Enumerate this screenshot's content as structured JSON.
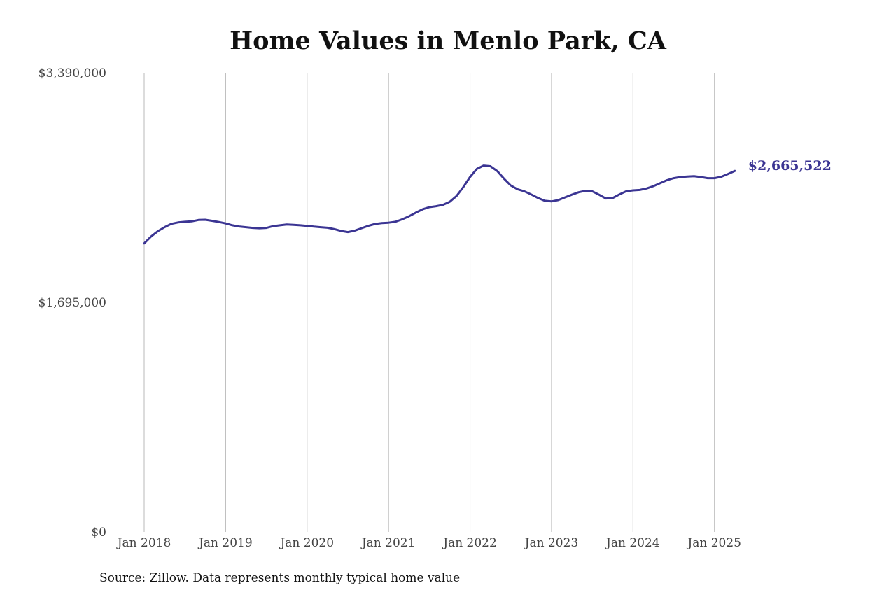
{
  "chart_data": {
    "type": "line",
    "title": "Home Values in Menlo Park, CA",
    "source": "Source: Zillow. Data represents monthly typical home value",
    "x_ticks": [
      "Jan 2018",
      "Jan 2019",
      "Jan 2020",
      "Jan 2021",
      "Jan 2022",
      "Jan 2023",
      "Jan 2024",
      "Jan 2025"
    ],
    "y_ticks": [
      {
        "value": 0,
        "label": "$0"
      },
      {
        "value": 1695000,
        "label": "$1,695,000"
      },
      {
        "value": 3390000,
        "label": "$3,390,000"
      }
    ],
    "ylim": [
      0,
      3390000
    ],
    "x_range": [
      "2018-01",
      "2025-10"
    ],
    "grid": {
      "vertical": true,
      "horizontal": false
    },
    "series": [
      {
        "color": "#3b3593",
        "end_label": "$2,665,522",
        "points": [
          [
            "2018-01",
            2130000
          ],
          [
            "2018-02",
            2180000
          ],
          [
            "2018-03",
            2220000
          ],
          [
            "2018-04",
            2250000
          ],
          [
            "2018-05",
            2275000
          ],
          [
            "2018-06",
            2285000
          ],
          [
            "2018-07",
            2290000
          ],
          [
            "2018-08",
            2293000
          ],
          [
            "2018-09",
            2303000
          ],
          [
            "2018-10",
            2305000
          ],
          [
            "2018-11",
            2297000
          ],
          [
            "2018-12",
            2288000
          ],
          [
            "2019-01",
            2278000
          ],
          [
            "2019-02",
            2264000
          ],
          [
            "2019-03",
            2255000
          ],
          [
            "2019-04",
            2250000
          ],
          [
            "2019-05",
            2245000
          ],
          [
            "2019-06",
            2242000
          ],
          [
            "2019-07",
            2245000
          ],
          [
            "2019-08",
            2258000
          ],
          [
            "2019-09",
            2264000
          ],
          [
            "2019-10",
            2270000
          ],
          [
            "2019-11",
            2267000
          ],
          [
            "2019-12",
            2264000
          ],
          [
            "2020-01",
            2260000
          ],
          [
            "2020-02",
            2254000
          ],
          [
            "2020-03",
            2250000
          ],
          [
            "2020-04",
            2246000
          ],
          [
            "2020-05",
            2236000
          ],
          [
            "2020-06",
            2222000
          ],
          [
            "2020-07",
            2214000
          ],
          [
            "2020-08",
            2224000
          ],
          [
            "2020-09",
            2242000
          ],
          [
            "2020-10",
            2260000
          ],
          [
            "2020-11",
            2274000
          ],
          [
            "2020-12",
            2280000
          ],
          [
            "2021-01",
            2283000
          ],
          [
            "2021-02",
            2290000
          ],
          [
            "2021-03",
            2308000
          ],
          [
            "2021-04",
            2330000
          ],
          [
            "2021-05",
            2357000
          ],
          [
            "2021-06",
            2382000
          ],
          [
            "2021-07",
            2398000
          ],
          [
            "2021-08",
            2405000
          ],
          [
            "2021-09",
            2415000
          ],
          [
            "2021-10",
            2437000
          ],
          [
            "2021-11",
            2480000
          ],
          [
            "2021-12",
            2545000
          ],
          [
            "2022-01",
            2620000
          ],
          [
            "2022-02",
            2680000
          ],
          [
            "2022-03",
            2705000
          ],
          [
            "2022-04",
            2700000
          ],
          [
            "2022-05",
            2665000
          ],
          [
            "2022-06",
            2608000
          ],
          [
            "2022-07",
            2558000
          ],
          [
            "2022-08",
            2530000
          ],
          [
            "2022-09",
            2515000
          ],
          [
            "2022-10",
            2492000
          ],
          [
            "2022-11",
            2466000
          ],
          [
            "2022-12",
            2445000
          ],
          [
            "2023-01",
            2440000
          ],
          [
            "2023-02",
            2450000
          ],
          [
            "2023-03",
            2470000
          ],
          [
            "2023-04",
            2490000
          ],
          [
            "2023-05",
            2508000
          ],
          [
            "2023-06",
            2518000
          ],
          [
            "2023-07",
            2515000
          ],
          [
            "2023-08",
            2490000
          ],
          [
            "2023-09",
            2462000
          ],
          [
            "2023-10",
            2465000
          ],
          [
            "2023-11",
            2492000
          ],
          [
            "2023-12",
            2515000
          ],
          [
            "2024-01",
            2522000
          ],
          [
            "2024-02",
            2525000
          ],
          [
            "2024-03",
            2536000
          ],
          [
            "2024-04",
            2553000
          ],
          [
            "2024-05",
            2575000
          ],
          [
            "2024-06",
            2597000
          ],
          [
            "2024-07",
            2612000
          ],
          [
            "2024-08",
            2620000
          ],
          [
            "2024-09",
            2624000
          ],
          [
            "2024-10",
            2626000
          ],
          [
            "2024-11",
            2620000
          ],
          [
            "2024-12",
            2612000
          ],
          [
            "2025-01",
            2612000
          ],
          [
            "2025-02",
            2622000
          ],
          [
            "2025-03",
            2643000
          ],
          [
            "2025-04",
            2665522
          ]
        ]
      }
    ]
  }
}
